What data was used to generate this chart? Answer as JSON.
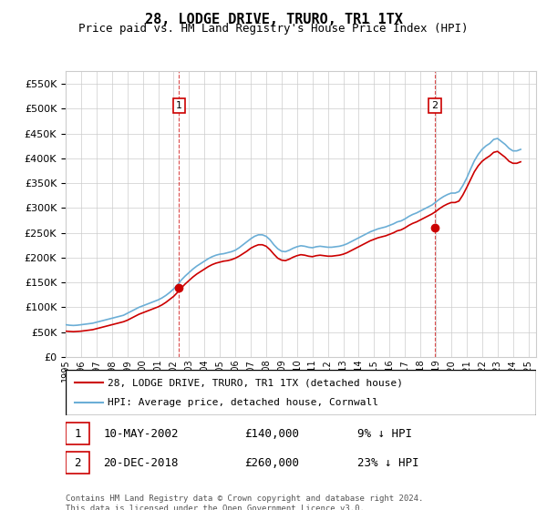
{
  "title": "28, LODGE DRIVE, TRURO, TR1 1TX",
  "subtitle": "Price paid vs. HM Land Registry's House Price Index (HPI)",
  "title_fontsize": 12,
  "subtitle_fontsize": 10,
  "ylabel_ticks": [
    0,
    50000,
    100000,
    150000,
    200000,
    250000,
    300000,
    350000,
    400000,
    450000,
    500000,
    550000
  ],
  "ylim": [
    0,
    575000
  ],
  "xlim_start": 1995.0,
  "xlim_end": 2025.5,
  "x_ticks": [
    1995,
    1996,
    1997,
    1998,
    1999,
    2000,
    2001,
    2002,
    2003,
    2004,
    2005,
    2006,
    2007,
    2008,
    2009,
    2010,
    2011,
    2012,
    2013,
    2014,
    2015,
    2016,
    2017,
    2018,
    2019,
    2020,
    2021,
    2022,
    2023,
    2024,
    2025
  ],
  "hpi_color": "#6baed6",
  "price_color": "#cc0000",
  "transaction_color": "#cc0000",
  "marker1_x": 2002.35,
  "marker1_y": 140000,
  "marker2_x": 2018.95,
  "marker2_y": 260000,
  "vline1_x": 2002.35,
  "vline2_x": 2018.95,
  "legend_label1": "28, LODGE DRIVE, TRURO, TR1 1TX (detached house)",
  "legend_label2": "HPI: Average price, detached house, Cornwall",
  "footer": "Contains HM Land Registry data © Crown copyright and database right 2024.\nThis data is licensed under the Open Government Licence v3.0.",
  "table_rows": [
    {
      "num": "1",
      "date": "10-MAY-2002",
      "price": "£140,000",
      "hpi": "9% ↓ HPI"
    },
    {
      "num": "2",
      "date": "20-DEC-2018",
      "price": "£260,000",
      "hpi": "23% ↓ HPI"
    }
  ],
  "hpi_data": {
    "x": [
      1995.0,
      1995.25,
      1995.5,
      1995.75,
      1996.0,
      1996.25,
      1996.5,
      1996.75,
      1997.0,
      1997.25,
      1997.5,
      1997.75,
      1998.0,
      1998.25,
      1998.5,
      1998.75,
      1999.0,
      1999.25,
      1999.5,
      1999.75,
      2000.0,
      2000.25,
      2000.5,
      2000.75,
      2001.0,
      2001.25,
      2001.5,
      2001.75,
      2002.0,
      2002.25,
      2002.5,
      2002.75,
      2003.0,
      2003.25,
      2003.5,
      2003.75,
      2004.0,
      2004.25,
      2004.5,
      2004.75,
      2005.0,
      2005.25,
      2005.5,
      2005.75,
      2006.0,
      2006.25,
      2006.5,
      2006.75,
      2007.0,
      2007.25,
      2007.5,
      2007.75,
      2008.0,
      2008.25,
      2008.5,
      2008.75,
      2009.0,
      2009.25,
      2009.5,
      2009.75,
      2010.0,
      2010.25,
      2010.5,
      2010.75,
      2011.0,
      2011.25,
      2011.5,
      2011.75,
      2012.0,
      2012.25,
      2012.5,
      2012.75,
      2013.0,
      2013.25,
      2013.5,
      2013.75,
      2014.0,
      2014.25,
      2014.5,
      2014.75,
      2015.0,
      2015.25,
      2015.5,
      2015.75,
      2016.0,
      2016.25,
      2016.5,
      2016.75,
      2017.0,
      2017.25,
      2017.5,
      2017.75,
      2018.0,
      2018.25,
      2018.5,
      2018.75,
      2019.0,
      2019.25,
      2019.5,
      2019.75,
      2020.0,
      2020.25,
      2020.5,
      2020.75,
      2021.0,
      2021.25,
      2021.5,
      2021.75,
      2022.0,
      2022.25,
      2022.5,
      2022.75,
      2023.0,
      2023.25,
      2023.5,
      2023.75,
      2024.0,
      2024.25,
      2024.5
    ],
    "y": [
      65000,
      64000,
      63500,
      64000,
      65000,
      66000,
      67000,
      68000,
      70000,
      72000,
      74000,
      76000,
      78000,
      80000,
      82000,
      84000,
      88000,
      92000,
      96000,
      100000,
      103000,
      106000,
      109000,
      112000,
      115000,
      119000,
      124000,
      130000,
      137000,
      145000,
      155000,
      163000,
      170000,
      177000,
      183000,
      188000,
      193000,
      198000,
      202000,
      205000,
      207000,
      208000,
      210000,
      212000,
      215000,
      220000,
      226000,
      232000,
      238000,
      243000,
      246000,
      246000,
      243000,
      236000,
      226000,
      218000,
      213000,
      212000,
      215000,
      219000,
      222000,
      224000,
      223000,
      221000,
      220000,
      222000,
      223000,
      222000,
      221000,
      221000,
      222000,
      223000,
      225000,
      228000,
      232000,
      236000,
      240000,
      244000,
      248000,
      252000,
      255000,
      258000,
      260000,
      262000,
      265000,
      268000,
      272000,
      274000,
      278000,
      283000,
      287000,
      290000,
      294000,
      298000,
      302000,
      306000,
      312000,
      318000,
      323000,
      327000,
      330000,
      330000,
      333000,
      345000,
      360000,
      378000,
      395000,
      408000,
      418000,
      425000,
      430000,
      438000,
      440000,
      434000,
      428000,
      420000,
      415000,
      415000,
      418000
    ]
  },
  "price_data": {
    "x": [
      1995.0,
      1995.25,
      1995.5,
      1995.75,
      1996.0,
      1996.25,
      1996.5,
      1996.75,
      1997.0,
      1997.25,
      1997.5,
      1997.75,
      1998.0,
      1998.25,
      1998.5,
      1998.75,
      1999.0,
      1999.25,
      1999.5,
      1999.75,
      2000.0,
      2000.25,
      2000.5,
      2000.75,
      2001.0,
      2001.25,
      2001.5,
      2001.75,
      2002.0,
      2002.25,
      2002.5,
      2002.75,
      2003.0,
      2003.25,
      2003.5,
      2003.75,
      2004.0,
      2004.25,
      2004.5,
      2004.75,
      2005.0,
      2005.25,
      2005.5,
      2005.75,
      2006.0,
      2006.25,
      2006.5,
      2006.75,
      2007.0,
      2007.25,
      2007.5,
      2007.75,
      2008.0,
      2008.25,
      2008.5,
      2008.75,
      2009.0,
      2009.25,
      2009.5,
      2009.75,
      2010.0,
      2010.25,
      2010.5,
      2010.75,
      2011.0,
      2011.25,
      2011.5,
      2011.75,
      2012.0,
      2012.25,
      2012.5,
      2012.75,
      2013.0,
      2013.25,
      2013.5,
      2013.75,
      2014.0,
      2014.25,
      2014.5,
      2014.75,
      2015.0,
      2015.25,
      2015.5,
      2015.75,
      2016.0,
      2016.25,
      2016.5,
      2016.75,
      2017.0,
      2017.25,
      2017.5,
      2017.75,
      2018.0,
      2018.25,
      2018.5,
      2018.75,
      2019.0,
      2019.25,
      2019.5,
      2019.75,
      2020.0,
      2020.25,
      2020.5,
      2020.75,
      2021.0,
      2021.25,
      2021.5,
      2021.75,
      2022.0,
      2022.25,
      2022.5,
      2022.75,
      2023.0,
      2023.25,
      2023.5,
      2023.75,
      2024.0,
      2024.25,
      2024.5
    ],
    "y": [
      52000,
      51500,
      51000,
      51500,
      52000,
      53000,
      54000,
      55000,
      57000,
      59000,
      61000,
      63000,
      65000,
      67000,
      69000,
      71000,
      74000,
      78000,
      82000,
      86000,
      89000,
      92000,
      95000,
      98000,
      101000,
      105000,
      110000,
      116000,
      122000,
      130000,
      139000,
      147000,
      154000,
      161000,
      167000,
      172000,
      177000,
      182000,
      186000,
      189000,
      191000,
      193000,
      194000,
      196000,
      199000,
      203000,
      208000,
      213000,
      219000,
      223000,
      226000,
      226000,
      223000,
      216000,
      207000,
      199000,
      195000,
      194000,
      197000,
      201000,
      204000,
      206000,
      205000,
      203000,
      202000,
      204000,
      205000,
      204000,
      203000,
      203000,
      204000,
      205000,
      207000,
      210000,
      214000,
      218000,
      222000,
      226000,
      230000,
      234000,
      237000,
      240000,
      242000,
      244000,
      247000,
      250000,
      254000,
      256000,
      260000,
      265000,
      269000,
      272000,
      276000,
      280000,
      284000,
      288000,
      293000,
      299000,
      304000,
      308000,
      311000,
      311000,
      314000,
      326000,
      341000,
      357000,
      373000,
      385000,
      394000,
      400000,
      405000,
      412000,
      414000,
      408000,
      402000,
      394000,
      390000,
      390000,
      393000
    ]
  }
}
